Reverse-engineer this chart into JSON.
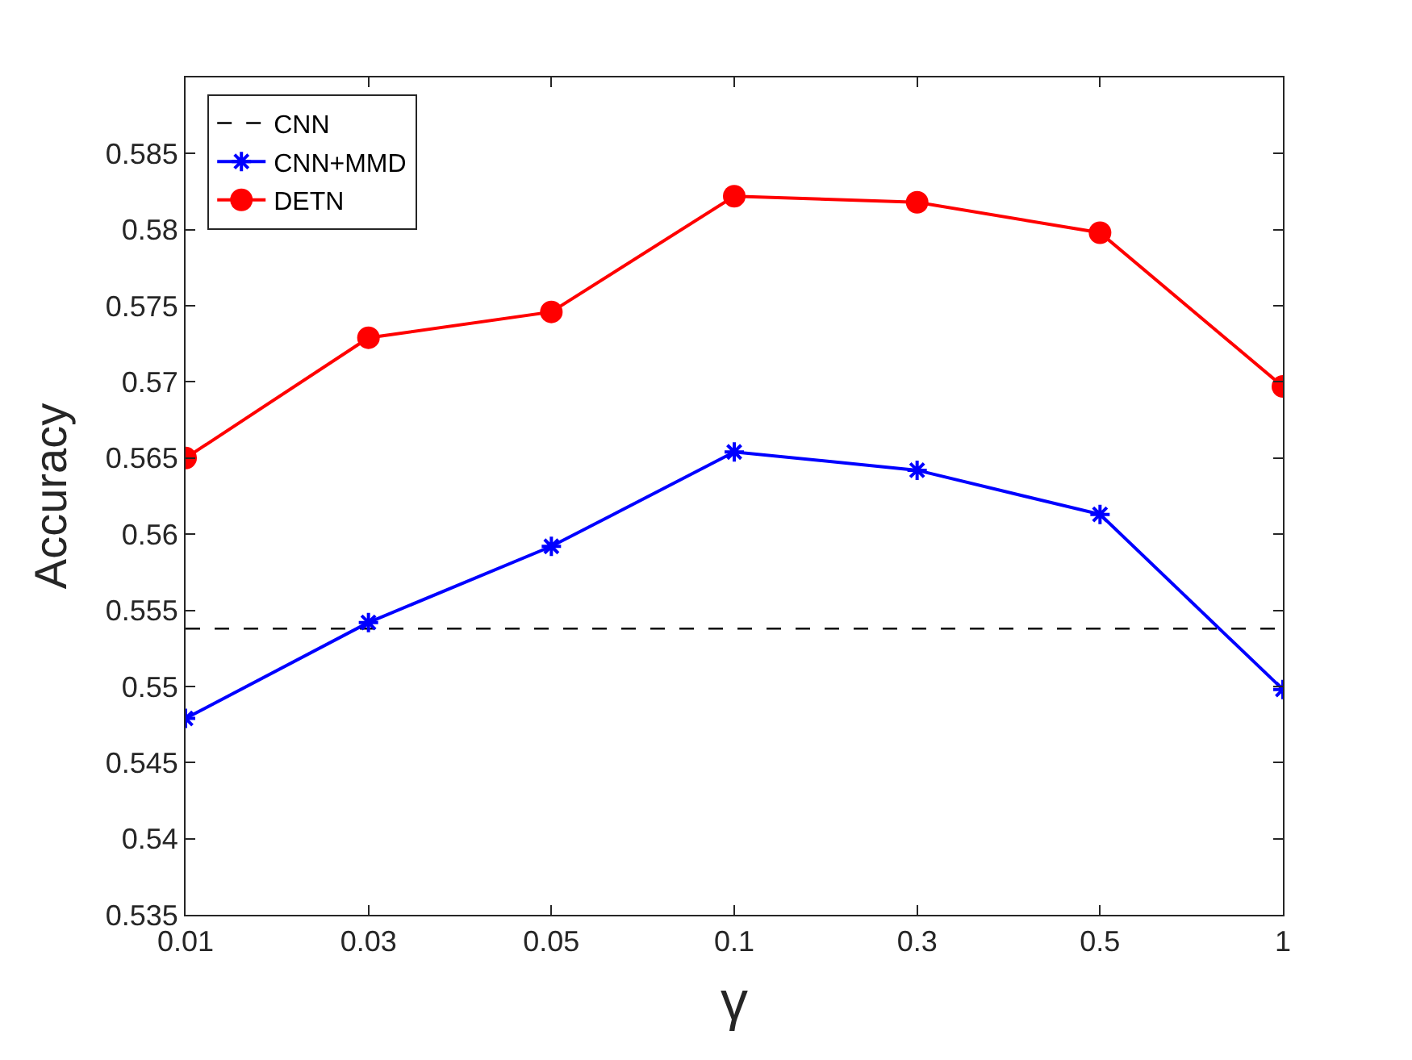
{
  "chart_data": {
    "type": "line",
    "xlabel": "γ",
    "ylabel": "Accuracy",
    "categories": [
      "0.01",
      "0.03",
      "0.05",
      "0.1",
      "0.3",
      "0.5",
      "1"
    ],
    "ylim": [
      0.535,
      0.59
    ],
    "yticks": [
      0.535,
      0.54,
      0.545,
      0.55,
      0.555,
      0.56,
      0.565,
      0.57,
      0.575,
      0.58,
      0.585
    ],
    "legend": "top left",
    "series": [
      {
        "name": "CNN",
        "color": "#000000",
        "line_style": "dashed",
        "marker": "none",
        "values": [
          0.5538,
          0.5538,
          0.5538,
          0.5538,
          0.5538,
          0.5538,
          0.5538
        ]
      },
      {
        "name": "CNN+MMD",
        "color": "#0000ff",
        "line_style": "solid",
        "marker": "cross",
        "values": [
          0.5479,
          0.5542,
          0.5592,
          0.5654,
          0.5642,
          0.5613,
          0.5498
        ]
      },
      {
        "name": "DETN",
        "color": "#ff0000",
        "line_style": "solid",
        "marker": "circle",
        "values": [
          0.565,
          0.5729,
          0.5746,
          0.5822,
          0.5818,
          0.5798,
          0.5697
        ]
      }
    ]
  }
}
